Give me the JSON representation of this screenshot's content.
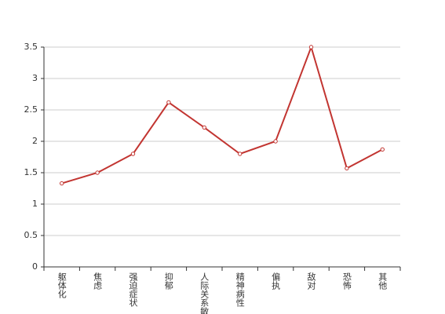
{
  "chart_data": {
    "type": "line",
    "categories": [
      "躯体化",
      "焦虑",
      "强迫症状",
      "抑郁",
      "人际关系敏感",
      "精神病性",
      "偏执",
      "敌对",
      "恐怖",
      "其他"
    ],
    "values": [
      1.33,
      1.5,
      1.8,
      2.62,
      2.22,
      1.8,
      2.0,
      3.5,
      1.57,
      1.87
    ],
    "color": "#c23531",
    "ylim": [
      0,
      3.5
    ],
    "yticks": [
      0,
      0.5,
      1,
      1.5,
      2,
      2.5,
      3,
      3.5
    ],
    "grid": true
  }
}
